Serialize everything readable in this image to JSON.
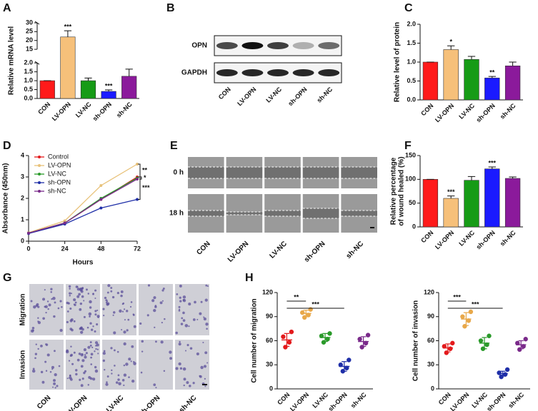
{
  "chart_data": [
    {
      "panel": "A",
      "type": "bar",
      "ylabel": "Relative mRNA level",
      "categories": [
        "CON",
        "LV-OPN",
        "LV-NC",
        "sh-OPN",
        "sh-NC"
      ],
      "values": [
        1.0,
        22,
        1.0,
        0.4,
        1.25
      ],
      "errors": [
        0,
        3.5,
        0.15,
        0.08,
        0.4
      ],
      "annotations": [
        null,
        "***",
        null,
        "***",
        null
      ],
      "colors": [
        "#ff1a1a",
        "#f6c07a",
        "#169b16",
        "#1a1aff",
        "#8b1a9b"
      ],
      "ylim": [
        0,
        30
      ],
      "ybreak": [
        2,
        15
      ],
      "yticks": [
        {
          "value": 0,
          "label": "0.0"
        },
        {
          "value": 0.5,
          "label": "0.5"
        },
        {
          "value": 1,
          "label": "1.0"
        },
        {
          "value": 1.5,
          "label": "1.5"
        },
        {
          "value": 2,
          "label": "2.0"
        },
        15,
        20,
        25,
        30
      ]
    },
    {
      "panel": "C",
      "type": "bar",
      "ylabel": "Relative level of protein",
      "categories": [
        "CON",
        "LV-OPN",
        "LV-NC",
        "sh-OPN",
        "sh-NC"
      ],
      "values": [
        1.0,
        1.33,
        1.07,
        0.58,
        0.9
      ],
      "errors": [
        0,
        0.1,
        0.08,
        0.04,
        0.1
      ],
      "annotations": [
        null,
        "*",
        null,
        "**",
        null
      ],
      "colors": [
        "#ff1a1a",
        "#f6c07a",
        "#169b16",
        "#1a1aff",
        "#8b1a9b"
      ],
      "ylim": [
        0,
        2
      ],
      "yticks": [
        {
          "value": 0,
          "label": "0.0"
        },
        {
          "value": 0.5,
          "label": "0.5"
        },
        {
          "value": 1,
          "label": "1.0"
        },
        {
          "value": 1.5,
          "label": "1.5"
        },
        {
          "value": 2,
          "label": "2.0"
        }
      ]
    },
    {
      "panel": "D",
      "type": "line",
      "xlabel": "Hours",
      "ylabel": "Absorbance (450nm)",
      "x": [
        0,
        24,
        48,
        72
      ],
      "xlim": [
        0,
        72
      ],
      "xticks": [
        0,
        24,
        48,
        72
      ],
      "ylim": [
        0,
        4
      ],
      "yticks": [
        0,
        1,
        2,
        3,
        4
      ],
      "legend": "upper left",
      "series": [
        {
          "name": "Control",
          "color": "#e31a1c",
          "values": [
            0.38,
            0.85,
            1.95,
            3.0
          ]
        },
        {
          "name": "LV-OPN",
          "color": "#e8c27a",
          "values": [
            0.4,
            0.95,
            2.6,
            3.6
          ]
        },
        {
          "name": "LV-NC",
          "color": "#2a9a2a",
          "values": [
            0.38,
            0.85,
            2.0,
            2.95
          ]
        },
        {
          "name": "sh-OPN",
          "color": "#1f2fa8",
          "values": [
            0.36,
            0.8,
            1.55,
            1.95
          ]
        },
        {
          "name": "sh-NC",
          "color": "#7a2a8a",
          "values": [
            0.38,
            0.85,
            1.95,
            2.9
          ]
        }
      ],
      "annotations": [
        {
          "label": "**",
          "between": [
            1,
            0
          ]
        },
        {
          "label": "*",
          "between": [
            0,
            4
          ]
        },
        {
          "label": "***",
          "between": [
            0,
            3
          ]
        }
      ]
    },
    {
      "panel": "F",
      "type": "bar",
      "ylabel": [
        "Relative percentage",
        "of wound healed (%)"
      ],
      "categories": [
        "CON",
        "LV-OPN",
        "LV-NC",
        "sh-OPN",
        "sh-NC"
      ],
      "values": [
        100,
        60,
        98,
        122,
        102
      ],
      "errors": [
        0,
        5,
        8,
        4,
        3
      ],
      "annotations": [
        null,
        "***",
        null,
        "***",
        null
      ],
      "colors": [
        "#ff1a1a",
        "#f6c07a",
        "#169b16",
        "#1a1aff",
        "#8b1a9b"
      ],
      "ylim": [
        0,
        150
      ],
      "yticks": [
        0,
        50,
        100,
        150
      ]
    },
    {
      "panel": "H",
      "type": "dot",
      "ylabel": "Cell number of migration",
      "categories": [
        "CON",
        "LV-OPN",
        "LV-NC",
        "sh-OPN",
        "sh-NC"
      ],
      "points": [
        [
          52,
          58,
          65,
          71
        ],
        [
          89,
          92,
          95,
          99
        ],
        [
          58,
          62,
          66,
          69
        ],
        [
          22,
          26,
          30,
          36
        ],
        [
          52,
          57,
          62,
          67
        ]
      ],
      "means": [
        61,
        94,
        64,
        28,
        59
      ],
      "sds": [
        8,
        4,
        5,
        6,
        6
      ],
      "colors": [
        "#e31a1c",
        "#e8a84a",
        "#2a9a2a",
        "#1f2fa8",
        "#7a2a8a"
      ],
      "ylim": [
        0,
        120
      ],
      "yticks": [
        0,
        30,
        60,
        90,
        120
      ],
      "comparisons": [
        {
          "groups": [
            0,
            1
          ],
          "label": "**"
        },
        {
          "groups": [
            0,
            3
          ],
          "label": "***"
        }
      ]
    },
    {
      "type": "dot",
      "ylabel": "Cell number of invasion",
      "categories": [
        "CON",
        "LV-OPN",
        "LV-NC",
        "sh-OPN",
        "sh-NC"
      ],
      "points": [
        [
          45,
          50,
          53,
          57
        ],
        [
          78,
          85,
          90,
          96
        ],
        [
          50,
          55,
          60,
          66
        ],
        [
          15,
          18,
          20,
          24
        ],
        [
          49,
          53,
          57,
          62
        ]
      ],
      "means": [
        51,
        87,
        57,
        19,
        55
      ],
      "sds": [
        5,
        8,
        7,
        3,
        5
      ],
      "colors": [
        "#e31a1c",
        "#e8a84a",
        "#2a9a2a",
        "#1f2fa8",
        "#7a2a8a"
      ],
      "ylim": [
        0,
        120
      ],
      "yticks": [
        0,
        30,
        60,
        90,
        120
      ],
      "comparisons": [
        {
          "groups": [
            0,
            1
          ],
          "label": "***"
        },
        {
          "groups": [
            0,
            3
          ],
          "label": "***"
        }
      ]
    }
  ],
  "blot": {
    "panel": "B",
    "rows": [
      "OPN",
      "GAPDH"
    ],
    "lanes": [
      "CON",
      "LV-OPN",
      "LV-NC",
      "sh-OPN",
      "sh-NC"
    ]
  },
  "wound": {
    "panel": "E",
    "rows": [
      "0 h",
      "18 h"
    ],
    "columns": [
      "CON",
      "LV-OPN",
      "LV-NC",
      "sh-OPN",
      "sh-NC"
    ]
  },
  "transwell": {
    "panel": "G",
    "rows": [
      "Migration",
      "Invasion"
    ],
    "columns": [
      "CON",
      "LV-OPN",
      "LV-NC",
      "sh-OPN",
      "sh-NC"
    ]
  }
}
